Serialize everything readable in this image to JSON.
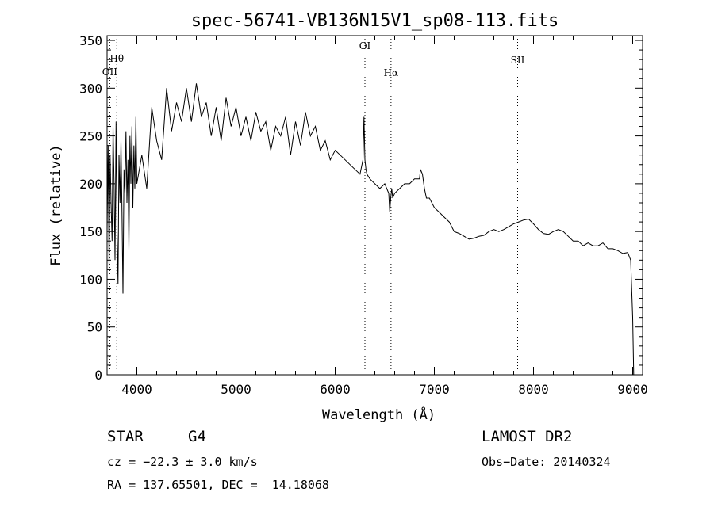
{
  "chart_data": {
    "type": "line",
    "title": "spec-56741-VB136N15V1_sp08-113.fits",
    "xlabel": "Wavelength (Å)",
    "ylabel": "Flux (relative)",
    "xlim": [
      3700,
      9100
    ],
    "ylim": [
      0,
      355
    ],
    "xticks": [
      4000,
      5000,
      6000,
      7000,
      8000,
      9000
    ],
    "yticks": [
      0,
      50,
      100,
      150,
      200,
      250,
      300,
      350
    ],
    "grid": false,
    "series": [
      {
        "x": [
          3700,
          3710,
          3720,
          3730,
          3740,
          3750,
          3760,
          3770,
          3780,
          3790,
          3800,
          3810,
          3820,
          3830,
          3840,
          3850,
          3860,
          3870,
          3880,
          3890,
          3900,
          3910,
          3920,
          3930,
          3940,
          3950,
          3960,
          3970,
          3980,
          3990,
          4000,
          4050,
          4100,
          4150,
          4200,
          4250,
          4300,
          4350,
          4400,
          4450,
          4500,
          4550,
          4600,
          4650,
          4700,
          4750,
          4800,
          4850,
          4900,
          4950,
          5000,
          5050,
          5100,
          5150,
          5200,
          5250,
          5300,
          5350,
          5400,
          5450,
          5500,
          5550,
          5600,
          5650,
          5700,
          5750,
          5800,
          5850,
          5900,
          5950,
          6000,
          6050,
          6100,
          6150,
          6200,
          6250,
          6280,
          6290,
          6300,
          6310,
          6320,
          6350,
          6400,
          6450,
          6500,
          6540,
          6550,
          6560,
          6570,
          6580,
          6600,
          6650,
          6700,
          6750,
          6800,
          6850,
          6860,
          6880,
          6900,
          6920,
          6950,
          7000,
          7050,
          7100,
          7150,
          7200,
          7250,
          7300,
          7350,
          7400,
          7450,
          7500,
          7550,
          7600,
          7650,
          7700,
          7750,
          7800,
          7850,
          7900,
          7950,
          8000,
          8050,
          8100,
          8150,
          8200,
          8250,
          8300,
          8350,
          8400,
          8450,
          8500,
          8550,
          8600,
          8650,
          8700,
          8750,
          8800,
          8850,
          8900,
          8950,
          8980,
          9000,
          9010
        ],
        "y": [
          150,
          240,
          110,
          230,
          180,
          140,
          260,
          200,
          120,
          265,
          150,
          95,
          230,
          180,
          245,
          170,
          85,
          215,
          190,
          255,
          180,
          225,
          130,
          250,
          200,
          260,
          175,
          240,
          195,
          270,
          200,
          230,
          195,
          280,
          245,
          225,
          300,
          255,
          285,
          265,
          300,
          265,
          305,
          270,
          285,
          250,
          280,
          245,
          290,
          260,
          280,
          250,
          270,
          245,
          275,
          255,
          265,
          235,
          260,
          250,
          270,
          230,
          265,
          240,
          275,
          250,
          260,
          235,
          245,
          225,
          235,
          230,
          225,
          220,
          215,
          210,
          225,
          270,
          225,
          215,
          210,
          205,
          200,
          195,
          200,
          190,
          170,
          185,
          195,
          185,
          190,
          195,
          200,
          200,
          205,
          205,
          215,
          210,
          195,
          185,
          185,
          175,
          170,
          165,
          160,
          150,
          148,
          145,
          142,
          143,
          145,
          146,
          150,
          152,
          150,
          152,
          155,
          158,
          160,
          162,
          163,
          158,
          152,
          148,
          147,
          150,
          152,
          150,
          145,
          140,
          140,
          135,
          138,
          135,
          135,
          138,
          132,
          132,
          130,
          127,
          128,
          120,
          60,
          0
        ]
      }
    ],
    "lines": [
      {
        "label": "OII",
        "x": 3727
      },
      {
        "label": "Hθ",
        "x": 3798
      },
      {
        "label": "OI",
        "x": 6300
      },
      {
        "label": "Hα",
        "x": 6563
      },
      {
        "label": "SII",
        "x": 7840
      }
    ]
  },
  "object_class": "STAR",
  "object_subclass": "G4",
  "cz_text": "cz = −22.3 ± 3.0 km/s",
  "radec_text": "RA = 137.65501, DEC =  14.18068",
  "survey": "LAMOST DR2",
  "obs_date": "Obs−Date: 20140324"
}
